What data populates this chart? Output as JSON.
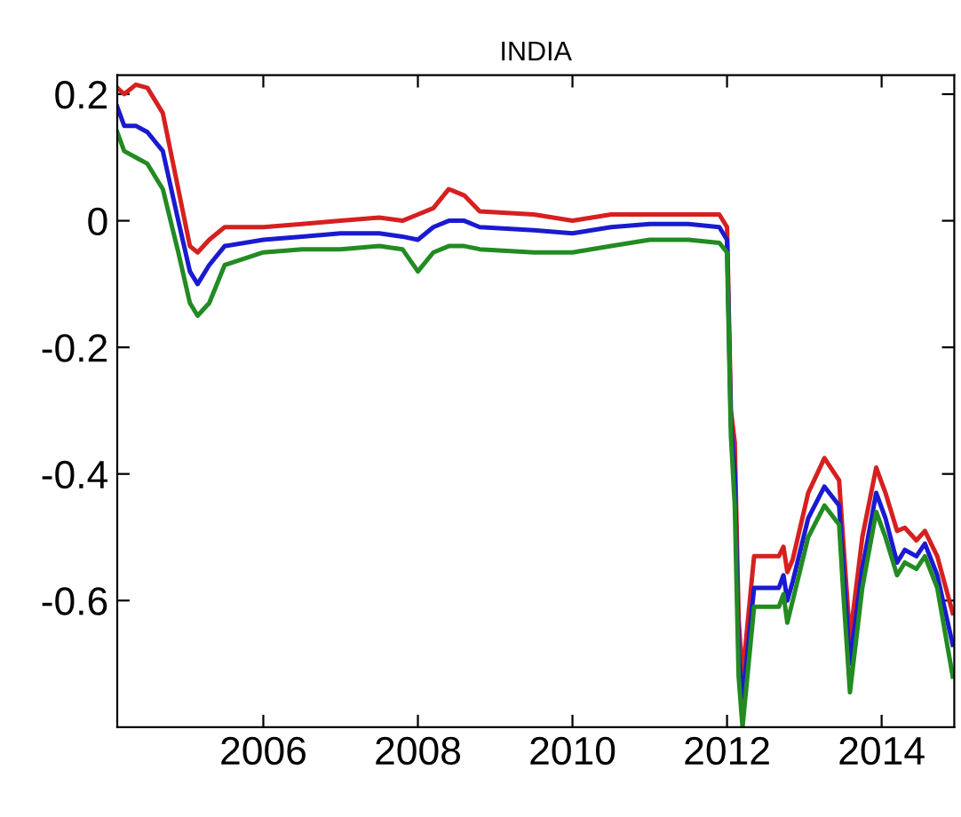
{
  "chart_data": {
    "type": "line",
    "title": "INDIA",
    "x": [
      2004.11,
      2004.2,
      2004.35,
      2004.5,
      2004.7,
      2004.9,
      2005.05,
      2005.15,
      2005.3,
      2005.5,
      2006,
      2006.5,
      2007,
      2007.5,
      2007.8,
      2008.0,
      2008.2,
      2008.4,
      2008.6,
      2008.8,
      2009.5,
      2010,
      2010.5,
      2011,
      2011.5,
      2011.9,
      2012.0,
      2012.05,
      2012.1,
      2012.15,
      2012.2,
      2012.35,
      2012.67,
      2012.73,
      2012.78,
      2012.85,
      2013.05,
      2013.26,
      2013.45,
      2013.5,
      2013.59,
      2013.75,
      2013.93,
      2014.05,
      2014.2,
      2014.3,
      2014.45,
      2014.56,
      2014.72,
      2014.92
    ],
    "series": [
      {
        "color": "#d62020",
        "values": [
          0.21,
          0.2,
          0.215,
          0.21,
          0.17,
          0.05,
          -0.04,
          -0.05,
          -0.03,
          -0.01,
          -0.01,
          -0.005,
          0.0,
          0.005,
          0.0,
          0.01,
          0.02,
          0.05,
          0.04,
          0.015,
          0.01,
          0.0,
          0.01,
          0.01,
          0.01,
          0.01,
          -0.01,
          -0.3,
          -0.35,
          -0.63,
          -0.72,
          -0.53,
          -0.53,
          -0.515,
          -0.555,
          -0.535,
          -0.43,
          -0.375,
          -0.41,
          -0.5,
          -0.66,
          -0.5,
          -0.39,
          -0.43,
          -0.49,
          -0.485,
          -0.505,
          -0.49,
          -0.53,
          -0.62
        ]
      },
      {
        "color": "#1a1ad0",
        "values": [
          0.18,
          0.15,
          0.15,
          0.14,
          0.11,
          0.0,
          -0.08,
          -0.1,
          -0.07,
          -0.04,
          -0.03,
          -0.025,
          -0.02,
          -0.02,
          -0.025,
          -0.03,
          -0.01,
          0.0,
          0.0,
          -0.01,
          -0.015,
          -0.02,
          -0.01,
          -0.005,
          -0.005,
          -0.01,
          -0.03,
          -0.32,
          -0.4,
          -0.68,
          -0.76,
          -0.58,
          -0.58,
          -0.56,
          -0.6,
          -0.57,
          -0.47,
          -0.42,
          -0.45,
          -0.54,
          -0.7,
          -0.55,
          -0.43,
          -0.47,
          -0.54,
          -0.52,
          -0.53,
          -0.51,
          -0.56,
          -0.67
        ]
      },
      {
        "color": "#228b22",
        "values": [
          0.14,
          0.11,
          0.1,
          0.09,
          0.05,
          -0.05,
          -0.13,
          -0.15,
          -0.13,
          -0.07,
          -0.05,
          -0.045,
          -0.045,
          -0.04,
          -0.045,
          -0.08,
          -0.05,
          -0.04,
          -0.04,
          -0.045,
          -0.05,
          -0.05,
          -0.04,
          -0.03,
          -0.03,
          -0.035,
          -0.05,
          -0.34,
          -0.45,
          -0.72,
          -0.8,
          -0.61,
          -0.61,
          -0.59,
          -0.635,
          -0.6,
          -0.5,
          -0.45,
          -0.48,
          -0.58,
          -0.745,
          -0.58,
          -0.46,
          -0.5,
          -0.56,
          -0.54,
          -0.55,
          -0.53,
          -0.58,
          -0.72
        ]
      }
    ],
    "xlim": [
      2004.11,
      2014.94
    ],
    "xticks": [
      2006,
      2008,
      2010,
      2012,
      2014
    ],
    "ylim": [
      -0.8,
      0.23
    ],
    "yticks": [
      0.2,
      0,
      -0.2,
      -0.4,
      -0.6
    ],
    "grid": false,
    "line_style": "solid",
    "marker": "none"
  }
}
